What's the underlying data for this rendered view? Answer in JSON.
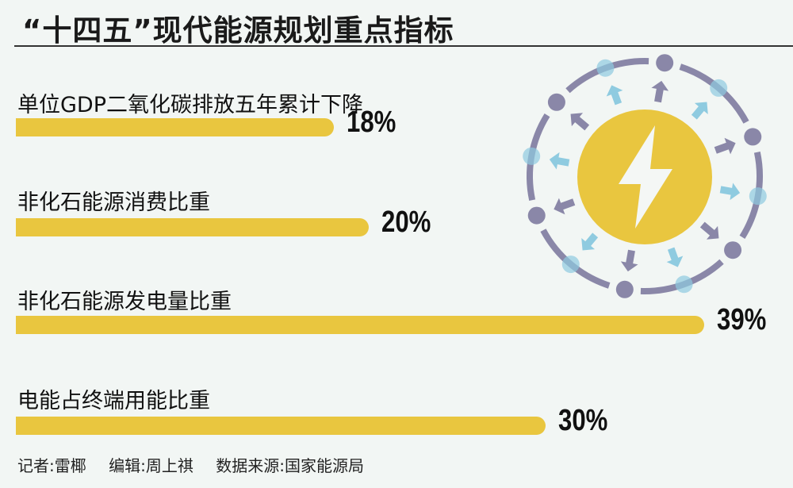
{
  "title": "“十四五”现代能源规划重点指标",
  "chart_data": {
    "type": "bar",
    "orientation": "horizontal",
    "title": "“十四五”现代能源规划重点指标",
    "categories": [
      "单位GDP二氧化碳排放五年累计下降",
      "非化石能源消费比重",
      "非化石能源发电量比重",
      "电能占终端用能比重"
    ],
    "values": [
      18,
      20,
      39,
      30
    ],
    "data_labels": [
      "18%",
      "20%",
      "39%",
      "30%"
    ],
    "unit": "%",
    "xlim": [
      0,
      40
    ],
    "grid": false,
    "bar_color": "#e9c63f"
  },
  "illustration": {
    "icon": "lightning-bolt-icon",
    "colors": {
      "core": "#e9c63f",
      "ring": "#8a87a8",
      "accent": "#8fcbe0"
    }
  },
  "footer": {
    "reporter": "记者:雷椰",
    "editor": "编辑:周上祺",
    "source": "数据来源:国家能源局"
  }
}
